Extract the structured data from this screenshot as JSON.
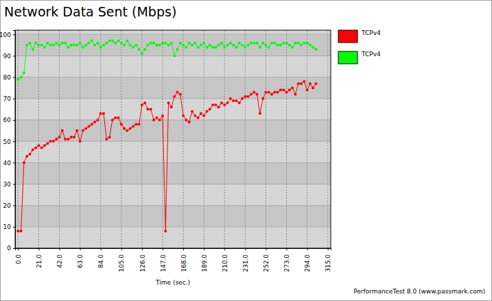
{
  "chart_data": {
    "type": "line",
    "title": "Network Data Sent (Mbps)",
    "x_label": "Time (sec.)",
    "annotations": [
      "PerformanceTest 8.0 (www.passmark.com)"
    ],
    "x": [
      0,
      3,
      6,
      9,
      12,
      15,
      18,
      21,
      24,
      27,
      30,
      33,
      36,
      39,
      42,
      45,
      48,
      51,
      54,
      57,
      60,
      63,
      66,
      69,
      72,
      75,
      78,
      81,
      84,
      87,
      90,
      93,
      96,
      99,
      102,
      105,
      108,
      111,
      114,
      117,
      120,
      123,
      126,
      129,
      132,
      135,
      138,
      141,
      144,
      147,
      150,
      153,
      156,
      159,
      162,
      165,
      168,
      171,
      174,
      177,
      180,
      183,
      186,
      189,
      192,
      195,
      198,
      201,
      204,
      207,
      210,
      213,
      216,
      219,
      222,
      225,
      228,
      231,
      234,
      237,
      240,
      243,
      246,
      249,
      252,
      255,
      258,
      261,
      264,
      267,
      270,
      273,
      276,
      279,
      282,
      285,
      288,
      291,
      294,
      297,
      300,
      303
    ],
    "series": [
      {
        "name": "TCPv4",
        "color": "#ff0000",
        "marker": "circle",
        "line_style": "solid",
        "values": [
          8,
          8,
          40,
          43,
          44,
          46,
          47,
          48,
          47,
          48,
          49,
          50,
          50,
          51,
          52,
          55,
          51,
          51,
          52,
          52,
          55,
          50,
          55,
          56,
          57,
          58,
          59,
          60,
          63,
          63,
          51,
          52,
          60,
          61,
          61,
          58,
          56,
          55,
          56,
          57,
          58,
          58,
          67,
          68,
          65,
          65,
          60,
          61,
          60,
          62,
          8,
          68,
          66,
          71,
          73,
          72,
          62,
          60,
          59,
          64,
          62,
          61,
          63,
          62,
          64,
          65,
          67,
          67,
          66,
          68,
          67,
          68,
          70,
          69,
          69,
          68,
          70,
          71,
          71,
          72,
          73,
          72,
          63,
          70,
          73,
          73,
          72,
          73,
          73,
          74,
          74,
          73,
          74,
          75,
          72,
          77,
          77,
          78,
          74,
          77,
          75,
          77
        ]
      },
      {
        "name": "TCPv4",
        "color": "#00ff00",
        "marker": "circle",
        "line_style": "solid",
        "values": [
          79,
          80,
          82,
          95,
          96,
          93,
          96,
          95,
          95,
          94,
          96,
          95,
          95,
          96,
          95,
          96,
          96,
          94,
          95,
          95,
          95,
          96,
          94,
          95,
          96,
          97,
          95,
          96,
          94,
          95,
          96,
          97,
          97,
          96,
          97,
          96,
          95,
          97,
          95,
          94,
          95,
          93,
          91,
          93,
          95,
          96,
          96,
          95,
          95,
          96,
          96,
          95,
          96,
          90,
          93,
          96,
          95,
          94,
          96,
          95,
          96,
          94,
          95,
          96,
          94,
          95,
          94,
          94,
          95,
          96,
          94,
          95,
          96,
          95,
          94,
          96,
          95,
          94,
          95,
          96,
          96,
          96,
          94,
          96,
          95,
          94,
          96,
          96,
          95,
          95,
          96,
          96,
          95,
          94,
          96,
          96,
          95,
          96,
          96,
          95,
          94,
          93
        ]
      }
    ],
    "xlim": [
      -3,
      318
    ],
    "xticks": [
      {
        "value": 0,
        "label": "0.0"
      },
      {
        "value": 21,
        "label": "21.0"
      },
      {
        "value": 42,
        "label": "42.0"
      },
      {
        "value": 63,
        "label": "63.0"
      },
      {
        "value": 84,
        "label": "84.0"
      },
      {
        "value": 105,
        "label": "105.0"
      },
      {
        "value": 126,
        "label": "126.0"
      },
      {
        "value": 147,
        "label": "147.0"
      },
      {
        "value": 168,
        "label": "168.0"
      },
      {
        "value": 189,
        "label": "189.0"
      },
      {
        "value": 210,
        "label": "210.0"
      },
      {
        "value": 231,
        "label": "231.0"
      },
      {
        "value": 252,
        "label": "252.0"
      },
      {
        "value": 273,
        "label": "273.0"
      },
      {
        "value": 294,
        "label": "294.0"
      },
      {
        "value": 315,
        "label": "315.0"
      }
    ],
    "ylim": [
      0,
      102
    ],
    "yticks": [
      0,
      10,
      20,
      30,
      40,
      50,
      60,
      70,
      80,
      90,
      100
    ],
    "grid": true,
    "legend": "right"
  }
}
